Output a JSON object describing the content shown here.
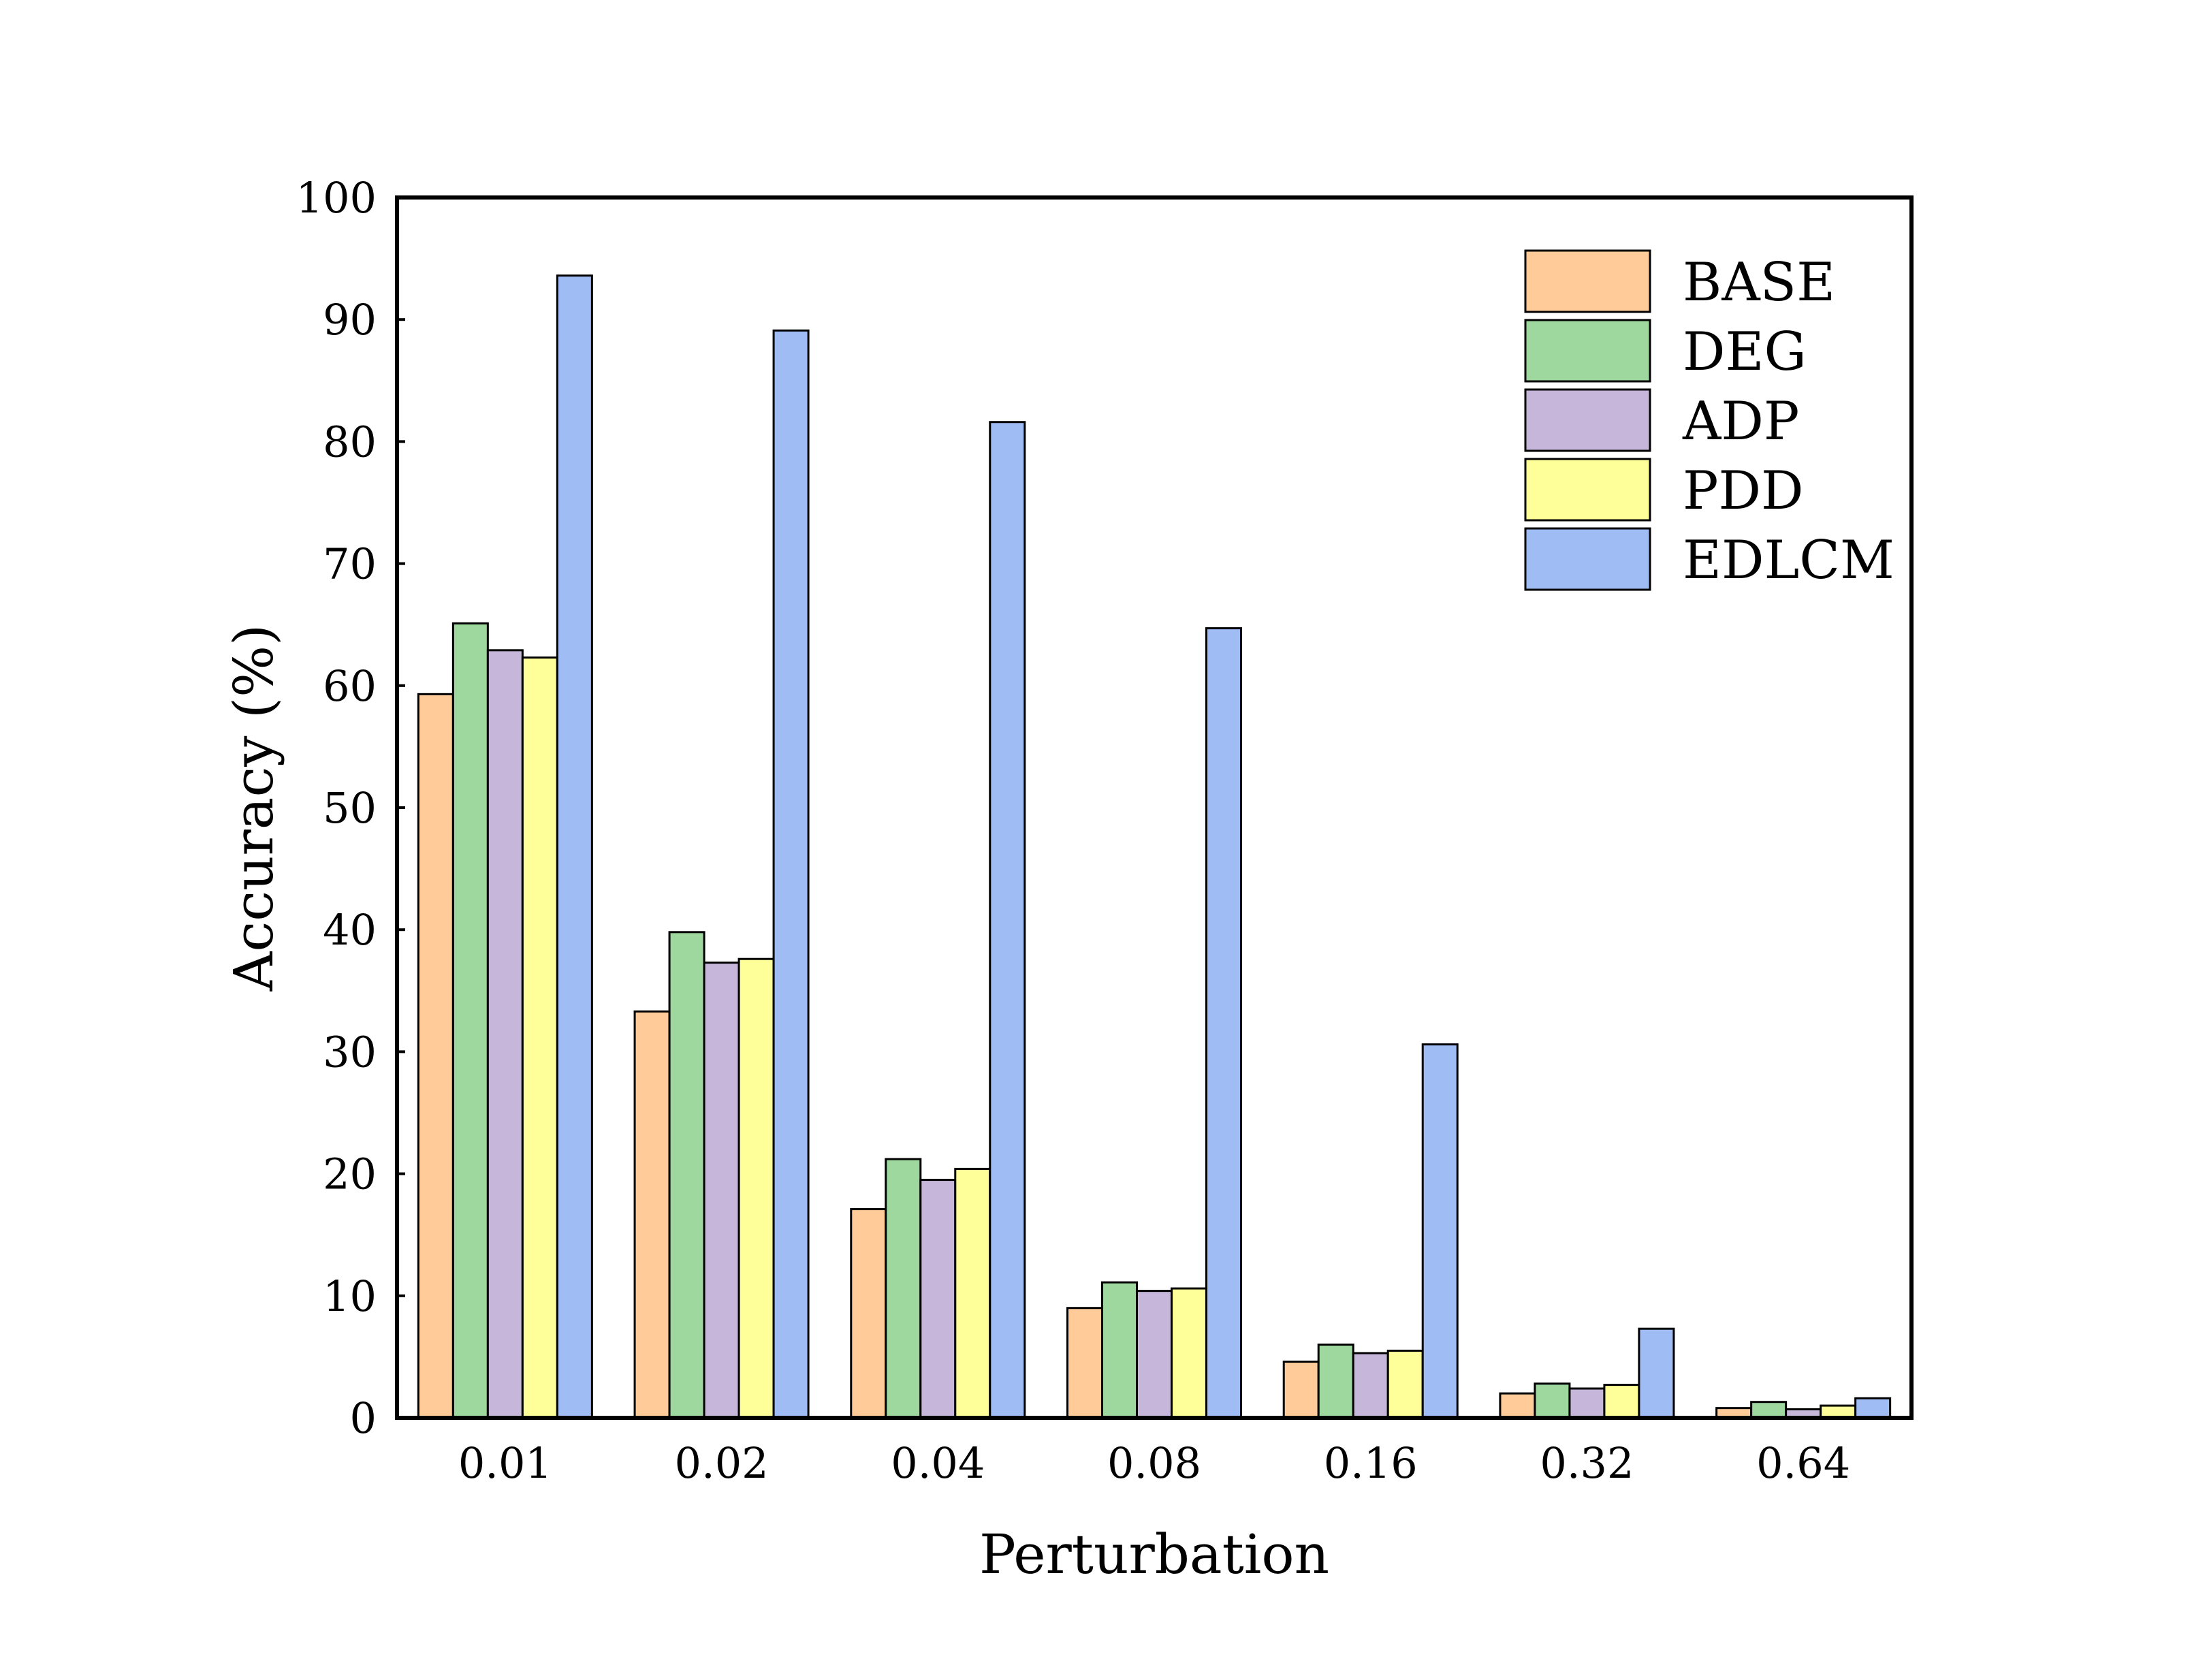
{
  "chart_data": {
    "type": "bar",
    "xlabel": "Perturbation",
    "ylabel": "Accuracy (%)",
    "categories": [
      "0.01",
      "0.02",
      "0.04",
      "0.08",
      "0.16",
      "0.32",
      "0.64"
    ],
    "ylim": [
      0,
      100
    ],
    "yticks": [
      "0",
      "10",
      "20",
      "30",
      "40",
      "50",
      "60",
      "70",
      "80",
      "90",
      "100"
    ],
    "grid": false,
    "legend_position": "top-right",
    "series": [
      {
        "name": "BASE",
        "color": "#FFCC99",
        "values": [
          59.3,
          33.3,
          17.1,
          9.0,
          4.6,
          2.0,
          0.8
        ]
      },
      {
        "name": "DEG",
        "color": "#9ED89E",
        "values": [
          65.1,
          39.8,
          21.2,
          11.1,
          6.0,
          2.8,
          1.3
        ]
      },
      {
        "name": "ADP",
        "color": "#C6B6DA",
        "values": [
          62.9,
          37.3,
          19.5,
          10.4,
          5.3,
          2.4,
          0.7
        ]
      },
      {
        "name": "PDD",
        "color": "#FFFF99",
        "values": [
          62.3,
          37.6,
          20.4,
          10.6,
          5.5,
          2.7,
          1.0
        ]
      },
      {
        "name": "EDLCM",
        "color": "#A0BCF5",
        "values": [
          93.6,
          89.1,
          81.6,
          64.7,
          30.6,
          7.3,
          1.6
        ]
      }
    ]
  }
}
